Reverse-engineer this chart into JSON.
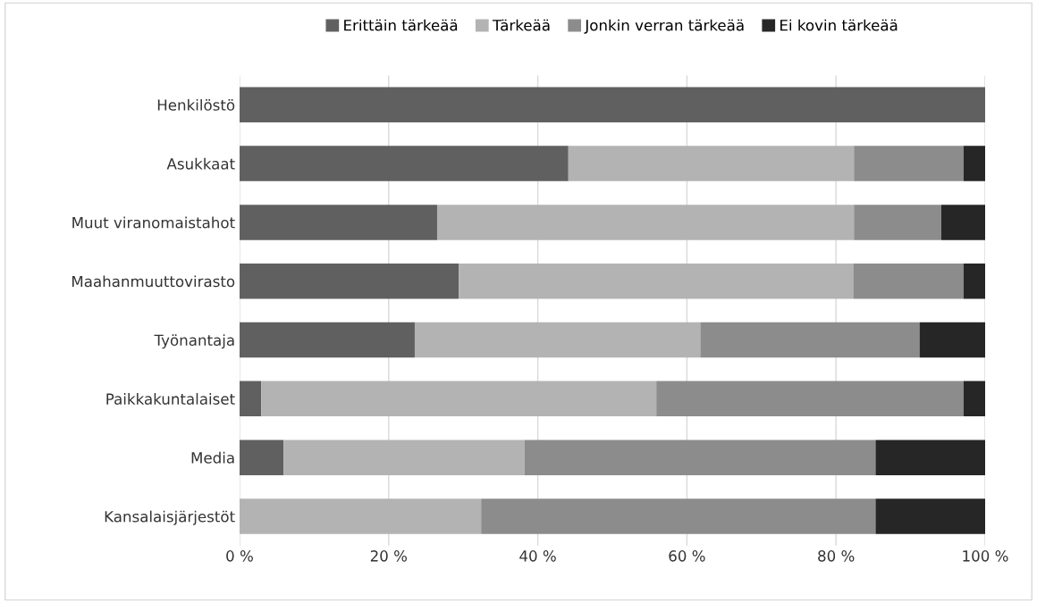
{
  "chart_data": {
    "type": "bar",
    "orientation": "horizontal",
    "stacked": true,
    "legend": "top",
    "grid": "x",
    "categories": [
      "Henkilöstö",
      "Asukkaat",
      "Muut viranomaistahot",
      "Maahanmuuttovirasto",
      "Työnantaja",
      "Paikkakuntalaiset",
      "Media",
      "Kansalaisjärjestöt"
    ],
    "series": [
      {
        "name": "Erittäin tärkeää",
        "color": "#606060",
        "values": [
          100,
          44.1,
          26.5,
          29.4,
          23.5,
          2.9,
          5.9,
          0
        ]
      },
      {
        "name": "Tärkeää",
        "color": "#b3b3b3",
        "values": [
          0,
          38.3,
          55.9,
          52.9,
          38.3,
          53.0,
          32.3,
          32.4
        ]
      },
      {
        "name": "Jonkin verran tärkeää",
        "color": "#8c8c8c",
        "values": [
          0,
          14.7,
          11.7,
          14.8,
          29.4,
          41.2,
          47.1,
          52.9
        ]
      },
      {
        "name": "Ei kovin tärkeää",
        "color": "#262626",
        "values": [
          0,
          2.9,
          5.9,
          2.9,
          8.8,
          2.9,
          14.7,
          14.7
        ]
      }
    ],
    "xlim": [
      0,
      100
    ],
    "xticks": [
      {
        "value": 0,
        "label": "0 %"
      },
      {
        "value": 20,
        "label": "20 %"
      },
      {
        "value": 40,
        "label": "40 %"
      },
      {
        "value": 60,
        "label": "60 %"
      },
      {
        "value": 80,
        "label": "80 %"
      },
      {
        "value": 100,
        "label": "100 %"
      }
    ]
  }
}
